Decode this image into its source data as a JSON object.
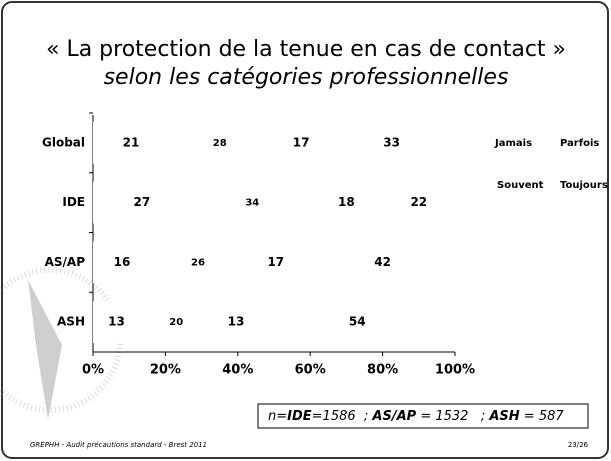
{
  "chart_data": {
    "type": "bar",
    "orientation": "horizontal",
    "stacked": true,
    "title": "« La protection de la tenue en cas de contact »",
    "subtitle": "selon les catégories professionnelles",
    "categories": [
      "Global",
      "IDE",
      "AS/AP",
      "ASH"
    ],
    "series": [
      {
        "name": "Jamais",
        "color": "#ffffff",
        "values": [
          21,
          27,
          16,
          13
        ]
      },
      {
        "name": "Parfois",
        "color": "#ffffff",
        "values": [
          28,
          34,
          26,
          20
        ]
      },
      {
        "name": "Souvent",
        "color": "#ffffff",
        "values": [
          17,
          18,
          17,
          13
        ]
      },
      {
        "name": "Toujours",
        "color": "#ffffff",
        "values": [
          33,
          22,
          42,
          54
        ]
      }
    ],
    "xlim": [
      0,
      100
    ],
    "xticks": [
      {
        "value": 0,
        "label": "0%"
      },
      {
        "value": 20,
        "label": "20%"
      },
      {
        "value": 40,
        "label": "40%"
      },
      {
        "value": 60,
        "label": "60%"
      },
      {
        "value": 80,
        "label": "80%"
      },
      {
        "value": 100,
        "label": "100%"
      }
    ],
    "legend": "right",
    "note": [
      "n=",
      "IDE",
      "=1586  ; ",
      "AS/AP",
      " = 1532   ; ",
      "ASH",
      " = 587"
    ],
    "footer": "GREPHH - Audit précautions standard - Brest 2011",
    "page": "23/26"
  }
}
